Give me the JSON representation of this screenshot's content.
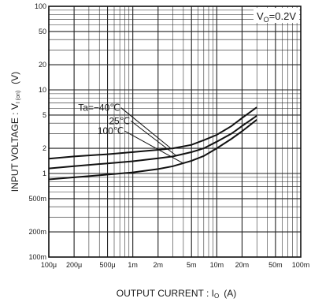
{
  "chart_data": {
    "type": "line",
    "xscale": "log",
    "yscale": "log",
    "xlim": [
      0.0001,
      0.1
    ],
    "ylim": [
      0.1,
      100
    ],
    "grid": true,
    "xlabel": "OUTPUT CURRENT : I",
    "xlabel_sub": "O",
    "xlabel_unit": "(A)",
    "ylabel": "INPUT VOLTAGE : V",
    "ylabel_sub": "I (on)",
    "ylabel_unit": "(V)",
    "annotation": {
      "main": "V",
      "sub": "O",
      "rest": "=0.2V"
    },
    "x_ticks": [
      {
        "value": 0.0001,
        "label": "100μ"
      },
      {
        "value": 0.0002,
        "label": "200μ"
      },
      {
        "value": 0.0005,
        "label": "500μ"
      },
      {
        "value": 0.001,
        "label": "1m"
      },
      {
        "value": 0.002,
        "label": "2m"
      },
      {
        "value": 0.005,
        "label": "5m"
      },
      {
        "value": 0.01,
        "label": "10m"
      },
      {
        "value": 0.02,
        "label": "20m"
      },
      {
        "value": 0.05,
        "label": "50m"
      },
      {
        "value": 0.1,
        "label": "100m"
      }
    ],
    "y_ticks": [
      {
        "value": 0.1,
        "label": "100m"
      },
      {
        "value": 0.2,
        "label": "200m"
      },
      {
        "value": 0.5,
        "label": "500m"
      },
      {
        "value": 1,
        "label": "1"
      },
      {
        "value": 2,
        "label": "2"
      },
      {
        "value": 5,
        "label": "5"
      },
      {
        "value": 10,
        "label": "10"
      },
      {
        "value": 20,
        "label": "20"
      },
      {
        "value": 50,
        "label": "50"
      },
      {
        "value": 100,
        "label": "100"
      }
    ],
    "series": [
      {
        "name": "Ta=−40℃",
        "x": [
          0.0001,
          0.0002,
          0.0005,
          0.001,
          0.002,
          0.003,
          0.005,
          0.007,
          0.01,
          0.015,
          0.02,
          0.03
        ],
        "y": [
          1.5,
          1.6,
          1.7,
          1.8,
          1.92,
          2.0,
          2.2,
          2.5,
          2.9,
          3.7,
          4.6,
          6.2
        ]
      },
      {
        "name": "25℃",
        "x": [
          0.0001,
          0.0002,
          0.0005,
          0.001,
          0.002,
          0.003,
          0.005,
          0.007,
          0.01,
          0.015,
          0.02,
          0.03
        ],
        "y": [
          1.15,
          1.22,
          1.32,
          1.4,
          1.52,
          1.6,
          1.8,
          2.0,
          2.4,
          3.0,
          3.7,
          4.9
        ]
      },
      {
        "name": "100℃",
        "x": [
          0.0001,
          0.0002,
          0.0005,
          0.001,
          0.002,
          0.003,
          0.005,
          0.007,
          0.01,
          0.015,
          0.02,
          0.03
        ],
        "y": [
          0.85,
          0.9,
          0.97,
          1.03,
          1.13,
          1.22,
          1.42,
          1.62,
          2.0,
          2.6,
          3.2,
          4.4
        ]
      }
    ]
  }
}
